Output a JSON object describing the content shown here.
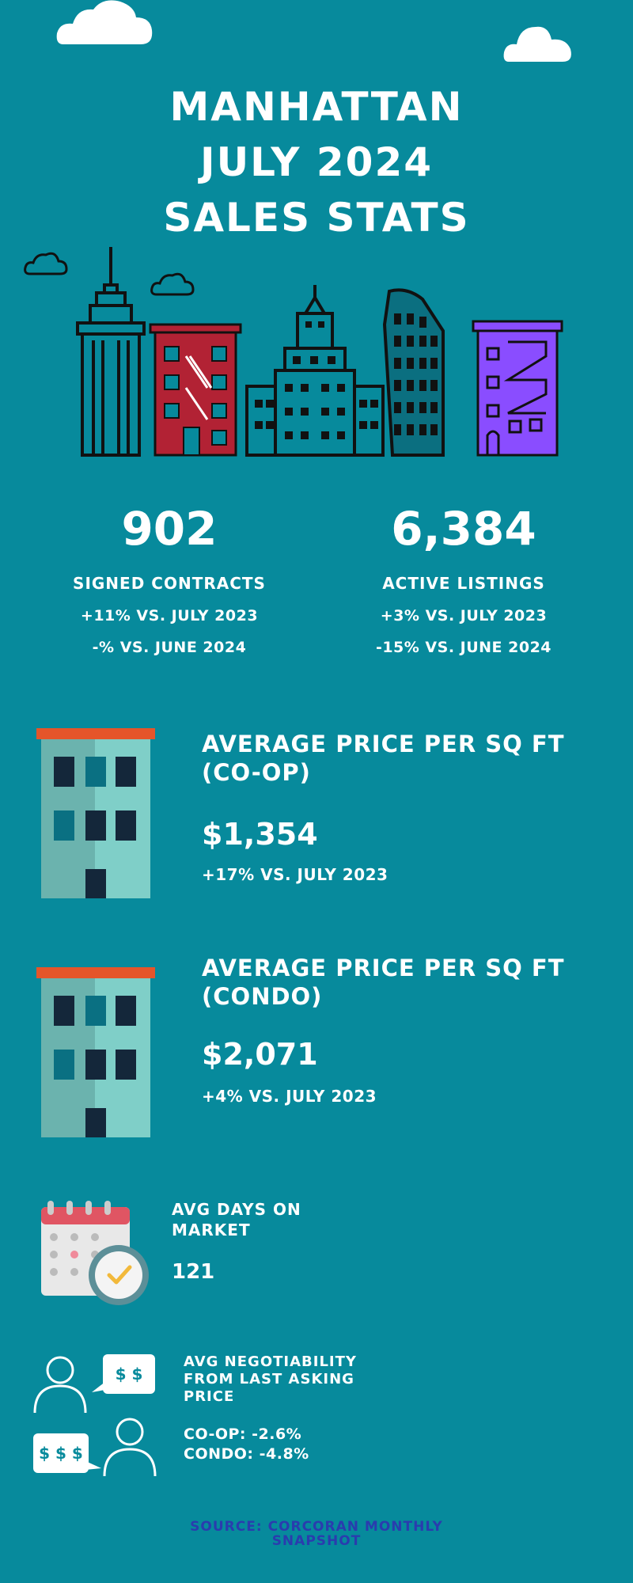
{
  "title": {
    "line1": "MANHATTAN",
    "line2": "JULY 2024",
    "line3": "SALES STATS"
  },
  "stats": {
    "contracts": {
      "value": "902",
      "label": "SIGNED CONTRACTS",
      "yoy": "+11% VS. JULY 2023",
      "mom": "-% VS. JUNE 2024"
    },
    "listings": {
      "value": "6,384",
      "label": "ACTIVE LISTINGS",
      "yoy": "+3% VS. JULY 2023",
      "mom": "-15% VS. JUNE 2024"
    }
  },
  "coop": {
    "title_line1": "AVERAGE PRICE PER SQ FT",
    "title_line2": "(CO-OP)",
    "price": "$1,354",
    "change": "+17% VS. JULY 2023"
  },
  "condo": {
    "title_line1": "AVERAGE PRICE PER SQ FT",
    "title_line2": "(CONDO)",
    "price": "$2,071",
    "change": "+4% VS. JULY 2023"
  },
  "days": {
    "title_line1": "AVG DAYS ON",
    "title_line2": "MARKET",
    "value": "121"
  },
  "negotiability": {
    "title_line1": "AVG NEGOTIABILITY",
    "title_line2": "FROM LAST ASKING",
    "title_line3": "PRICE",
    "coop": "CO-OP: -2.6%",
    "condo": "CONDO: -4.8%",
    "bubble_small": "$ $",
    "bubble_large": "$ $ $"
  },
  "source": {
    "line1": "SOURCE: CORCORAN MONTHLY",
    "line2": "SNAPSHOT"
  },
  "colors": {
    "background": "#078a9c",
    "red_building": "#b22234",
    "purple_building": "#8a4dff",
    "roof": "#e5552a",
    "source_text": "#2a3cae"
  },
  "icons": [
    "cloud-icon",
    "empire-state-icon",
    "brick-building-icon",
    "skyscraper-icon",
    "flatiron-icon",
    "purple-building-icon",
    "building-icon",
    "calendar-clock-icon",
    "person-icon",
    "speech-bubble-icon"
  ]
}
